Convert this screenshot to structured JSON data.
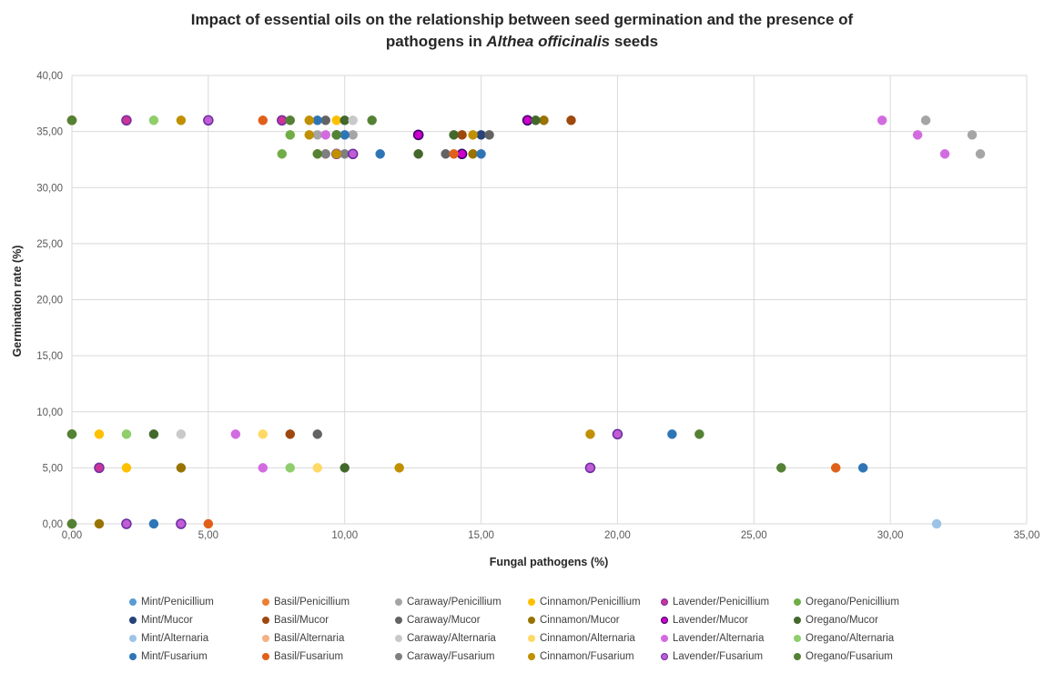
{
  "chart_data": {
    "type": "scatter",
    "title_line1": "Impact of essential oils on the relationship between seed germination and the presence of",
    "title_line2_pre": "pathogens in ",
    "title_line2_italic": "Althea officinalis",
    "title_line2_post": " seeds",
    "xlabel": "Fungal pathogens (%)",
    "ylabel": "Germination rate (%)",
    "xlim": [
      0,
      35
    ],
    "ylim": [
      0,
      40
    ],
    "x_ticks": [
      "0,00",
      "5,00",
      "10,00",
      "15,00",
      "20,00",
      "25,00",
      "30,00",
      "35,00"
    ],
    "y_ticks": [
      "0,00",
      "5,00",
      "10,00",
      "15,00",
      "20,00",
      "25,00",
      "30,00",
      "35,00",
      "40,00"
    ],
    "grid": true,
    "legend_position": "bottom",
    "series": [
      {
        "name": "Mint/Penicillium",
        "color": "#5b9bd5",
        "points": [
          [
            0,
            36
          ],
          [
            0,
            8
          ],
          [
            0,
            0
          ]
        ]
      },
      {
        "name": "Basil/Penicillium",
        "color": "#ed7d31",
        "points": [
          [
            0,
            36
          ],
          [
            0,
            8
          ],
          [
            0,
            0
          ]
        ]
      },
      {
        "name": "Caraway/Penicillium",
        "color": "#a5a5a5",
        "points": [
          [
            0,
            36
          ],
          [
            0,
            8
          ],
          [
            0,
            0
          ],
          [
            9,
            34.7
          ],
          [
            10.3,
            34.7
          ],
          [
            9.3,
            33
          ],
          [
            31.3,
            36
          ],
          [
            33,
            34.7
          ],
          [
            33.3,
            33
          ]
        ]
      },
      {
        "name": "Cinnamon/Penicillium",
        "color": "#ffc000",
        "points": [
          [
            0,
            36
          ],
          [
            0,
            8
          ],
          [
            0,
            0
          ],
          [
            9.7,
            36
          ],
          [
            9,
            33
          ],
          [
            1,
            8
          ],
          [
            2,
            5
          ]
        ]
      },
      {
        "name": "Lavender/Penicillium",
        "color": "#cc3399",
        "edge": "#7030a0",
        "points": [
          [
            7.7,
            36
          ],
          [
            12.7,
            34.7
          ],
          [
            9.7,
            33
          ],
          [
            2,
            36
          ],
          [
            1,
            5
          ]
        ]
      },
      {
        "name": "Oregano/Penicillium",
        "color": "#70ad47",
        "points": [
          [
            0,
            36
          ],
          [
            8,
            34.7
          ],
          [
            7.7,
            33
          ],
          [
            0,
            8
          ],
          [
            0,
            0
          ]
        ]
      },
      {
        "name": "Mint/Mucor",
        "color": "#264478",
        "points": [
          [
            0,
            36
          ],
          [
            0,
            0
          ],
          [
            9.7,
            34.7
          ],
          [
            15,
            34.7
          ]
        ]
      },
      {
        "name": "Basil/Mucor",
        "color": "#9e480e",
        "points": [
          [
            0,
            36
          ],
          [
            0,
            0
          ],
          [
            18.3,
            36
          ],
          [
            14.3,
            34.7
          ],
          [
            8,
            8
          ]
        ]
      },
      {
        "name": "Caraway/Mucor",
        "color": "#636363",
        "points": [
          [
            0,
            36
          ],
          [
            0,
            0
          ],
          [
            9.3,
            36
          ],
          [
            15.3,
            34.7
          ],
          [
            13.7,
            33
          ],
          [
            9,
            8
          ]
        ]
      },
      {
        "name": "Cinnamon/Mucor",
        "color": "#997300",
        "points": [
          [
            0,
            36
          ],
          [
            0,
            0
          ],
          [
            17.3,
            36
          ],
          [
            14.7,
            33
          ],
          [
            4,
            5
          ],
          [
            1,
            0
          ]
        ]
      },
      {
        "name": "Lavender/Mucor",
        "color": "#cc00cc",
        "edge": "#3a0066",
        "points": [
          [
            16.7,
            36
          ],
          [
            12.7,
            34.7
          ],
          [
            14.3,
            33
          ]
        ]
      },
      {
        "name": "Oregano/Mucor",
        "color": "#43682b",
        "points": [
          [
            0,
            36
          ],
          [
            0,
            0
          ],
          [
            10,
            36
          ],
          [
            17,
            36
          ],
          [
            14,
            34.7
          ],
          [
            12.7,
            33
          ],
          [
            3,
            8
          ],
          [
            10,
            5
          ]
        ]
      },
      {
        "name": "Mint/Alternaria",
        "color": "#9dc3e6",
        "points": [
          [
            0,
            36
          ],
          [
            0,
            0
          ],
          [
            31.7,
            0
          ]
        ]
      },
      {
        "name": "Basil/Alternaria",
        "color": "#f4b183",
        "points": [
          [
            0,
            36
          ],
          [
            0,
            0
          ]
        ]
      },
      {
        "name": "Caraway/Alternaria",
        "color": "#c9c9c9",
        "points": [
          [
            0,
            36
          ],
          [
            0,
            0
          ],
          [
            10.3,
            36
          ],
          [
            4,
            8
          ]
        ]
      },
      {
        "name": "Cinnamon/Alternaria",
        "color": "#ffd966",
        "points": [
          [
            0,
            36
          ],
          [
            0,
            0
          ],
          [
            7,
            8
          ],
          [
            9,
            5
          ]
        ]
      },
      {
        "name": "Lavender/Alternaria",
        "color": "#d36be0",
        "points": [
          [
            29.7,
            36
          ],
          [
            31,
            34.7
          ],
          [
            32,
            33
          ],
          [
            9.3,
            34.7
          ],
          [
            6,
            8
          ],
          [
            7,
            5
          ],
          [
            20,
            8
          ]
        ]
      },
      {
        "name": "Oregano/Alternaria",
        "color": "#8fce6b",
        "points": [
          [
            0,
            36
          ],
          [
            0,
            0
          ],
          [
            3,
            36
          ],
          [
            2,
            8
          ],
          [
            0,
            8
          ],
          [
            8,
            5
          ]
        ]
      },
      {
        "name": "Mint/Fusarium",
        "color": "#2e75b6",
        "points": [
          [
            0,
            36
          ],
          [
            0,
            0
          ],
          [
            9,
            36
          ],
          [
            10,
            34.7
          ],
          [
            11.3,
            33
          ],
          [
            15,
            33
          ],
          [
            22,
            8
          ],
          [
            29,
            5
          ],
          [
            3,
            0
          ]
        ]
      },
      {
        "name": "Basil/Fusarium",
        "color": "#e0601a",
        "points": [
          [
            0,
            36
          ],
          [
            7,
            36
          ],
          [
            14,
            33
          ],
          [
            28,
            5
          ],
          [
            5,
            0
          ]
        ]
      },
      {
        "name": "Caraway/Fusarium",
        "color": "#7f7f7f",
        "points": [
          [
            0,
            36
          ],
          [
            0,
            0
          ],
          [
            9.3,
            33
          ],
          [
            10,
            33
          ]
        ]
      },
      {
        "name": "Cinnamon/Fusarium",
        "color": "#c09000",
        "points": [
          [
            0,
            36
          ],
          [
            0,
            0
          ],
          [
            4,
            36
          ],
          [
            8.7,
            36
          ],
          [
            8.7,
            34.7
          ],
          [
            9.7,
            33
          ],
          [
            14.7,
            34.7
          ],
          [
            19,
            8
          ],
          [
            12,
            5
          ]
        ]
      },
      {
        "name": "Lavender/Fusarium",
        "color": "#c05cd6",
        "edge": "#6a2c9e",
        "points": [
          [
            5,
            36
          ],
          [
            10.3,
            33
          ],
          [
            19,
            5
          ],
          [
            20,
            8
          ],
          [
            2,
            0
          ],
          [
            4,
            0
          ]
        ]
      },
      {
        "name": "Oregano/Fusarium",
        "color": "#548235",
        "points": [
          [
            0,
            36
          ],
          [
            0,
            8
          ],
          [
            0,
            0
          ],
          [
            8,
            36
          ],
          [
            11,
            36
          ],
          [
            9,
            33
          ],
          [
            9.7,
            34.7
          ],
          [
            23,
            8
          ],
          [
            26,
            5
          ]
        ]
      }
    ]
  }
}
